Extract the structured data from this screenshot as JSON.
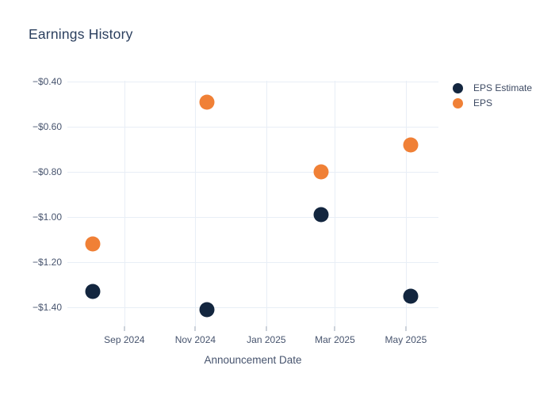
{
  "colors": {
    "background": "#ffffff",
    "title_text": "#2b3f5e",
    "axis_text": "#47546e",
    "gridline": "#e8eef6",
    "tick_mark": "#9aa4b6",
    "eps_estimate": "#13263f",
    "eps": "#f08036"
  },
  "chart_data": {
    "type": "scatter",
    "title": "Earnings History",
    "xlabel": "Announcement Date",
    "ylabel": "",
    "grid": true,
    "legend_position": "right",
    "marker_px": 19,
    "x": [
      "2024-08-05",
      "2024-11-11",
      "2025-02-17",
      "2025-05-05"
    ],
    "series": [
      {
        "name": "EPS Estimate",
        "color": "#13263f",
        "values": [
          -1.33,
          -1.41,
          -0.99,
          -1.35
        ]
      },
      {
        "name": "EPS",
        "color": "#f08036",
        "values": [
          -1.12,
          -0.49,
          -0.8,
          -0.68
        ]
      }
    ],
    "x_ticks": [
      {
        "date": "2024-09-01",
        "label": "Sep 2024"
      },
      {
        "date": "2024-11-01",
        "label": "Nov 2024"
      },
      {
        "date": "2025-01-01",
        "label": "Jan 2025"
      },
      {
        "date": "2025-03-01",
        "label": "Mar 2025"
      },
      {
        "date": "2025-05-01",
        "label": "May 2025"
      }
    ],
    "y_ticks": [
      {
        "value": -0.4,
        "label": "−$0.40"
      },
      {
        "value": -0.6,
        "label": "−$0.60"
      },
      {
        "value": -0.8,
        "label": "−$0.80"
      },
      {
        "value": -1.0,
        "label": "−$1.00"
      },
      {
        "value": -1.2,
        "label": "−$1.20"
      },
      {
        "value": -1.4,
        "label": "−$1.40"
      }
    ],
    "xlim": [
      "2024-07-14",
      "2025-05-29"
    ],
    "ylim": [
      -1.485,
      -0.3965
    ]
  }
}
